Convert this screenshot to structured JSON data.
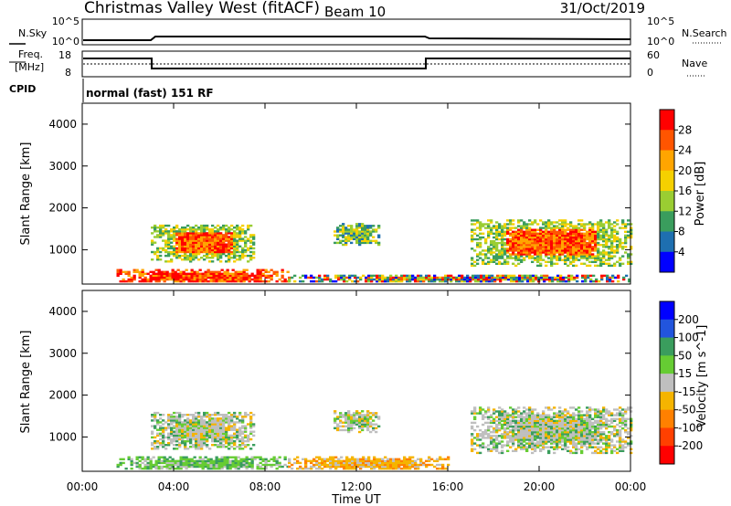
{
  "header": {
    "station": "Christmas Valley West (fitACF)",
    "beam": "Beam 10",
    "date": "31/Oct/2019"
  },
  "noise_panel": {
    "left_label": "N.Sky",
    "right_label": "N.Search",
    "left_ticks": [
      "10^5",
      "10^0"
    ],
    "right_ticks": [
      "10^5",
      "10^0"
    ]
  },
  "freq_panel": {
    "left_label_1": "Freq.",
    "left_label_2": "[MHz]",
    "right_label": "Nave",
    "left_ticks": [
      "18",
      "8"
    ],
    "right_ticks": [
      "60",
      "0"
    ]
  },
  "cpid": {
    "label": "CPID",
    "text": "normal (fast) 151 RF"
  },
  "x_ticks": [
    "00:00",
    "04:00",
    "08:00",
    "12:00",
    "16:00",
    "20:00",
    "00:00"
  ],
  "xlabel": "Time UT",
  "chart_data": [
    {
      "type": "heatmap",
      "name": "power",
      "ylabel": "Slant Range [km]",
      "ylim": [
        180,
        4500
      ],
      "yticks": [
        "4000",
        "3000",
        "2000",
        "1000"
      ],
      "xlim_hours": [
        0,
        24
      ],
      "colorbar": {
        "label": "Power [dB]",
        "ticks": [
          "28",
          "24",
          "20",
          "16",
          "12",
          "8",
          "4"
        ],
        "colors": [
          "#ff0000",
          "#ff5500",
          "#ffa500",
          "#f5d000",
          "#9acd32",
          "#3a9d5d",
          "#1e6fb0",
          "#0000ff"
        ]
      },
      "regions": [
        {
          "t": [
            3.0,
            7.5
          ],
          "r": [
            700,
            1600
          ],
          "level": "medium-high"
        },
        {
          "t": [
            11.0,
            13.0
          ],
          "r": [
            1100,
            1600
          ],
          "level": "medium"
        },
        {
          "t": [
            17.0,
            24.0
          ],
          "r": [
            600,
            1700
          ],
          "level": "medium-high"
        },
        {
          "t": [
            1.5,
            9.0
          ],
          "r": [
            180,
            500
          ],
          "level": "high"
        },
        {
          "t": [
            9.0,
            24.0
          ],
          "r": [
            180,
            400
          ],
          "level": "mixed"
        }
      ]
    },
    {
      "type": "heatmap",
      "name": "velocity",
      "ylabel": "Slant Range [km]",
      "ylim": [
        180,
        4500
      ],
      "yticks": [
        "4000",
        "3000",
        "2000",
        "1000"
      ],
      "xlim_hours": [
        0,
        24
      ],
      "colorbar": {
        "label": "Velocity [m s^-1]",
        "ticks": [
          "200",
          "100",
          "50",
          "15",
          "-15",
          "-50",
          "-100",
          "-200"
        ],
        "colors": [
          "#0000ff",
          "#2255dd",
          "#3a9d5d",
          "#66cc33",
          "#bfbfbf",
          "#f5b400",
          "#ff8000",
          "#ff4000",
          "#ff0000"
        ]
      },
      "regions": [
        {
          "t": [
            3.0,
            7.5
          ],
          "r": [
            700,
            1600
          ],
          "level": "near-zero"
        },
        {
          "t": [
            11.0,
            13.0
          ],
          "r": [
            1100,
            1600
          ],
          "level": "near-zero"
        },
        {
          "t": [
            17.0,
            24.0
          ],
          "r": [
            600,
            1700
          ],
          "level": "near-zero"
        },
        {
          "t": [
            1.5,
            9.0
          ],
          "r": [
            180,
            500
          ],
          "level": "positive-low"
        },
        {
          "t": [
            9.0,
            16.0
          ],
          "r": [
            180,
            500
          ],
          "level": "negative-low"
        }
      ]
    }
  ]
}
